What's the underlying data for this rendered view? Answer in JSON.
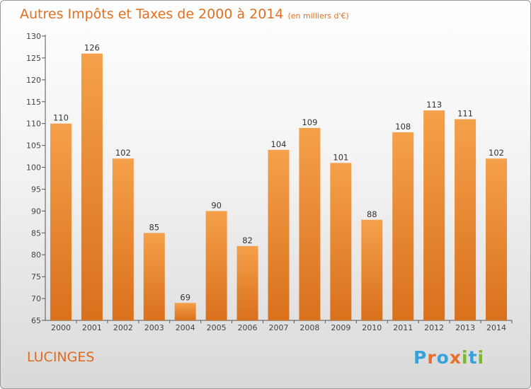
{
  "header": {
    "title": "Autres Impôts et Taxes de 2000 à 2014",
    "subtitle": "(en milliers d'€)"
  },
  "footer": {
    "place": "LUCINGES",
    "logo": "Proxiti"
  },
  "colors": {
    "bar_light": "#f5a04a",
    "bar_dark": "#d9701c",
    "title": "#e07020"
  },
  "chart_data": {
    "type": "bar",
    "title": "Autres Impôts et Taxes de 2000 à 2014",
    "subtitle": "(en milliers d'€)",
    "categories": [
      "2000",
      "2001",
      "2002",
      "2003",
      "2004",
      "2005",
      "2006",
      "2007",
      "2008",
      "2009",
      "2010",
      "2011",
      "2012",
      "2013",
      "2014"
    ],
    "values": [
      110,
      126,
      102,
      85,
      69,
      90,
      82,
      104,
      109,
      101,
      88,
      108,
      113,
      111,
      102
    ],
    "ylim": [
      65,
      130
    ],
    "yticks": [
      65,
      70,
      75,
      80,
      85,
      90,
      95,
      100,
      105,
      110,
      115,
      120,
      125,
      130
    ],
    "grid": false,
    "data_labels": true
  }
}
